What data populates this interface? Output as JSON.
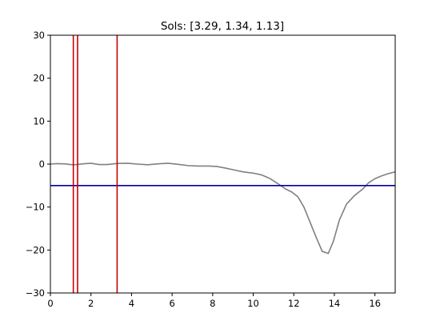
{
  "chart_data": {
    "type": "line",
    "title": "Sols: [3.29, 1.34, 1.13]",
    "xlabel": "",
    "ylabel": "",
    "xlim": [
      0,
      17
    ],
    "ylim": [
      -30,
      30
    ],
    "xticks": [
      0,
      2,
      4,
      6,
      8,
      10,
      12,
      14,
      16
    ],
    "yticks": [
      -30,
      -20,
      -10,
      0,
      10,
      20,
      30
    ],
    "grid": false,
    "series": [
      {
        "color": "#808080",
        "x": [
          0,
          0.3,
          0.7,
          1.0,
          1.2,
          1.6,
          2.0,
          2.4,
          2.8,
          3.3,
          3.8,
          4.3,
          4.8,
          5.3,
          5.8,
          6.3,
          6.8,
          7.3,
          7.8,
          8.2,
          8.6,
          9.0,
          9.5,
          10.0,
          10.4,
          10.8,
          11.2,
          11.6,
          11.9,
          12.2,
          12.5,
          12.8,
          13.1,
          13.4,
          13.7,
          13.95,
          14.25,
          14.6,
          15.0,
          15.4,
          15.7,
          16.0,
          16.3,
          16.6,
          17.0
        ],
        "y": [
          0,
          0.1,
          0.05,
          -0.1,
          -0.15,
          0.05,
          0.2,
          -0.1,
          -0.1,
          0.15,
          0.2,
          0.0,
          -0.15,
          0.05,
          0.2,
          -0.05,
          -0.35,
          -0.45,
          -0.45,
          -0.55,
          -0.9,
          -1.3,
          -1.8,
          -2.1,
          -2.5,
          -3.3,
          -4.5,
          -5.8,
          -6.5,
          -7.6,
          -10.0,
          -13.5,
          -17.0,
          -20.3,
          -20.8,
          -18.0,
          -13.0,
          -9.3,
          -7.3,
          -5.8,
          -4.3,
          -3.4,
          -2.8,
          -2.3,
          -1.8
        ]
      }
    ],
    "hlines": [
      {
        "y": -5,
        "color": "#0000aa"
      }
    ],
    "vlines": [
      {
        "x": 3.29,
        "color": "#cc0000"
      },
      {
        "x": 1.34,
        "color": "#cc0000"
      },
      {
        "x": 1.13,
        "color": "#cc0000"
      }
    ]
  }
}
